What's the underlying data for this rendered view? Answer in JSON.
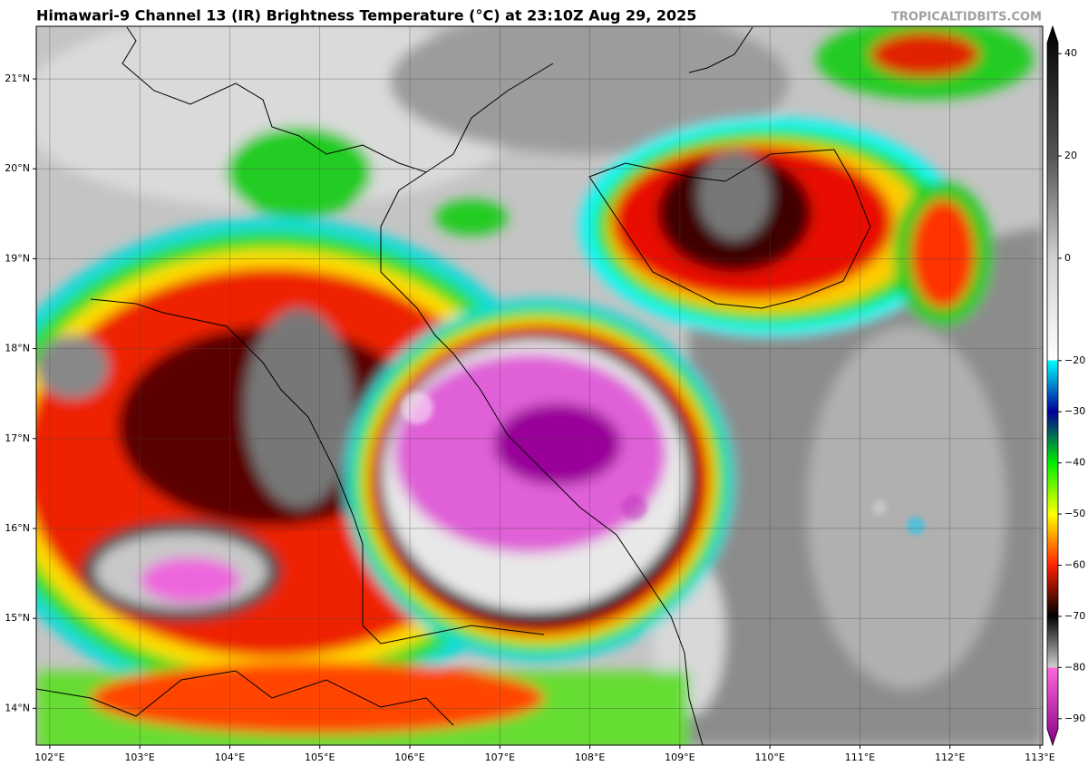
{
  "header": {
    "title": "Himawari-9 Channel 13 (IR) Brightness Temperature (°C) at 23:10Z Aug 29, 2025",
    "source": "TROPICALTIDBITS.COM"
  },
  "map": {
    "lonlim": [
      101.85,
      113.03
    ],
    "latlim": [
      13.59,
      21.585
    ],
    "lonticks": [
      {
        "value": 102,
        "label": "102°E"
      },
      {
        "value": 103,
        "label": "103°E"
      },
      {
        "value": 104,
        "label": "104°E"
      },
      {
        "value": 105,
        "label": "105°E"
      },
      {
        "value": 106,
        "label": "106°E"
      },
      {
        "value": 107,
        "label": "107°E"
      },
      {
        "value": 108,
        "label": "108°E"
      },
      {
        "value": 109,
        "label": "109°E"
      },
      {
        "value": 110,
        "label": "110°E"
      },
      {
        "value": 111,
        "label": "111°E"
      },
      {
        "value": 112,
        "label": "112°E"
      },
      {
        "value": 113,
        "label": "113°E"
      }
    ],
    "latticks": [
      {
        "value": 14,
        "label": "14°N"
      },
      {
        "value": 15,
        "label": "15°N"
      },
      {
        "value": 16,
        "label": "16°N"
      },
      {
        "value": 17,
        "label": "17°N"
      },
      {
        "value": 18,
        "label": "18°N"
      },
      {
        "value": 19,
        "label": "19°N"
      },
      {
        "value": 20,
        "label": "20°N"
      },
      {
        "value": 21,
        "label": "21°N"
      }
    ]
  },
  "colorbar": {
    "lim": [
      -95,
      45
    ],
    "ticks": [
      40,
      20,
      0,
      {
        "value": -20,
        "label": "−20"
      },
      {
        "value": -30,
        "label": "−30"
      },
      {
        "value": -40,
        "label": "−40"
      },
      {
        "value": -50,
        "label": "−50"
      },
      {
        "value": -60,
        "label": "−60"
      },
      {
        "value": -70,
        "label": "−70"
      },
      {
        "value": -80,
        "label": "−80"
      },
      {
        "value": -90,
        "label": "−90"
      }
    ]
  }
}
